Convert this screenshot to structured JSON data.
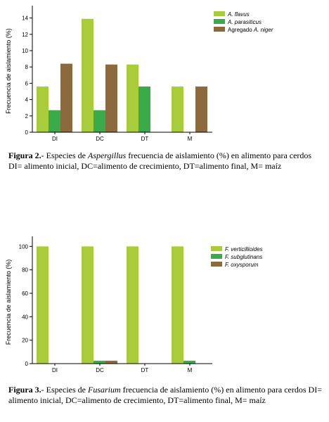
{
  "chart_data": [
    {
      "type": "bar",
      "categories": [
        "DI",
        "DC",
        "DT",
        "M"
      ],
      "ylabel": "Frecuencia de aislamiento (%)",
      "ylim": [
        0,
        15
      ],
      "yticks": [
        0,
        2,
        4,
        6,
        8,
        10,
        12,
        14
      ],
      "legend_position": "top-right",
      "series": [
        {
          "name": "A. flavus",
          "color": "#a8cc3a",
          "values": [
            5.6,
            13.9,
            8.3,
            5.6
          ]
        },
        {
          "name": "A. parasiticus",
          "color": "#3aaa4a",
          "values": [
            2.7,
            2.7,
            5.6,
            0
          ]
        },
        {
          "name": "Agregado A. niger",
          "color": "#8b6a3e",
          "values": [
            8.4,
            8.3,
            0,
            5.6
          ]
        }
      ]
    },
    {
      "type": "bar",
      "categories": [
        "DI",
        "DC",
        "DT",
        "M"
      ],
      "ylabel": "Frecuencia de aislamiento (%)",
      "ylim": [
        0,
        105
      ],
      "yticks": [
        0,
        20,
        40,
        60,
        80,
        100
      ],
      "legend_position": "top-right",
      "series": [
        {
          "name": "F. verticillioides",
          "color": "#a8cc3a",
          "values": [
            100,
            100,
            100,
            100
          ]
        },
        {
          "name": "F. subglutinans",
          "color": "#3aaa4a",
          "values": [
            0,
            2.5,
            0,
            2.5
          ]
        },
        {
          "name": "F. oxysporum",
          "color": "#8b6a3e",
          "values": [
            0,
            2.5,
            0,
            0
          ]
        }
      ]
    }
  ],
  "captions": [
    {
      "label": "Figura 2.",
      "pre": "- Especies de ",
      "genus": "Aspergillus",
      "post": "  frecuencia de aislamiento (%) en alimento para cerdos DI= alimento inicial, DC=alimento de crecimiento, DT=alimento final, M= maíz"
    },
    {
      "label": "Figura 3.",
      "pre": "- Especies de ",
      "genus": "Fusarium",
      "post": "  frecuencia de aislamiento (%) en alimento para cerdos DI= alimento inicial, DC=alimento de crecimiento, DT=alimento final, M= maíz"
    }
  ]
}
